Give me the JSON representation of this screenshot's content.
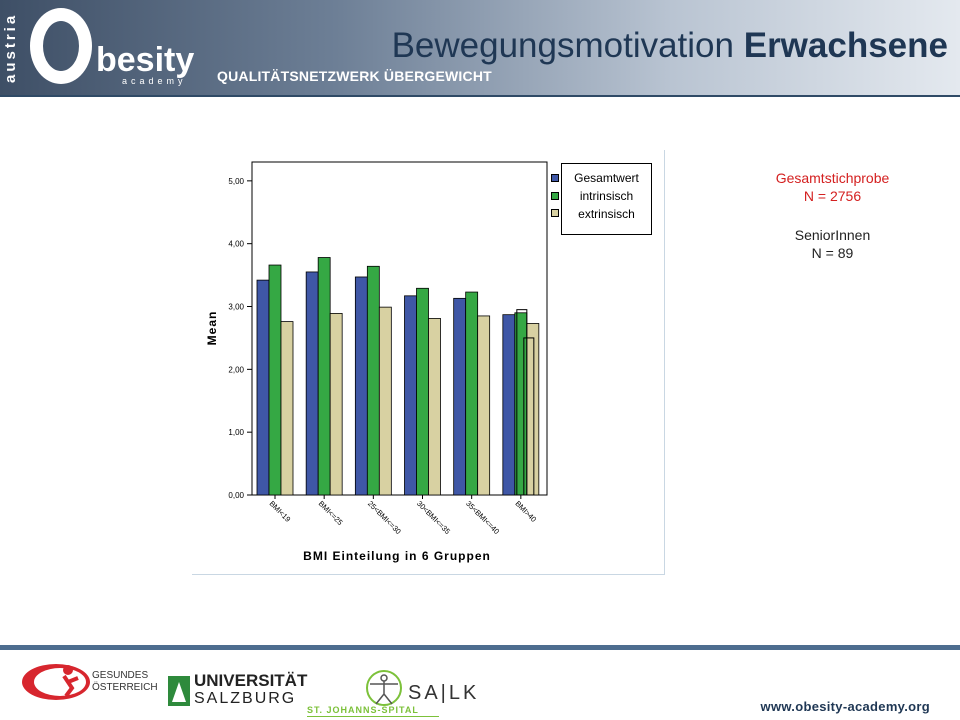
{
  "header": {
    "logo_side": "austria",
    "logo_main": "besity",
    "logo_sub": "academy",
    "tagline": "QUALITÄTSNETZWERK ÜBERGEWICHT",
    "title_regular": "Bewegungsmotivation ",
    "title_bold": "Erwachsene"
  },
  "chart_data": {
    "type": "bar",
    "categories": [
      "BMI<19",
      "BMI<=25",
      "25<BMI<=30",
      "30<BMI<=35",
      "35<BMI<=40",
      "BMI>40"
    ],
    "series": [
      {
        "name": "Gesamtwert",
        "values": [
          3.42,
          3.55,
          3.47,
          3.17,
          3.13,
          2.87
        ],
        "color": "#3f57a6"
      },
      {
        "name": "intrinsisch",
        "values": [
          3.66,
          3.78,
          3.64,
          3.29,
          3.23,
          2.9
        ],
        "color": "#35a844"
      },
      {
        "name": "extrinsisch",
        "values": [
          2.76,
          2.89,
          2.99,
          2.81,
          2.85,
          2.73
        ],
        "color": "#d8d1a2"
      }
    ],
    "senior_overlay": {
      "category": "BMI>40",
      "values": [
        2.95,
        2.5
      ]
    },
    "yticks": [
      "0,00",
      "1,00",
      "2,00",
      "3,00",
      "4,00",
      "5,00"
    ],
    "ylim": [
      0,
      5.3
    ],
    "xlabel": "BMI Einteilung in 6 Gruppen",
    "ylabel": "Mean",
    "legend_position": "top-right"
  },
  "notes": {
    "sample_label": "Gesamtstichprobe",
    "sample_n": "N = 2756",
    "senior_label": "SeniorInnen",
    "senior_n": "N = 89"
  },
  "footer": {
    "fgo_line1": "GESUNDES",
    "fgo_line2": "ÖSTERREICH",
    "uni_line1": "UNIVERSITÄT",
    "uni_line2": "SALZBURG",
    "salk": "SA|LK",
    "spital": "ST. JOHANNS-SPITAL",
    "url": "www.obesity-academy.org"
  }
}
